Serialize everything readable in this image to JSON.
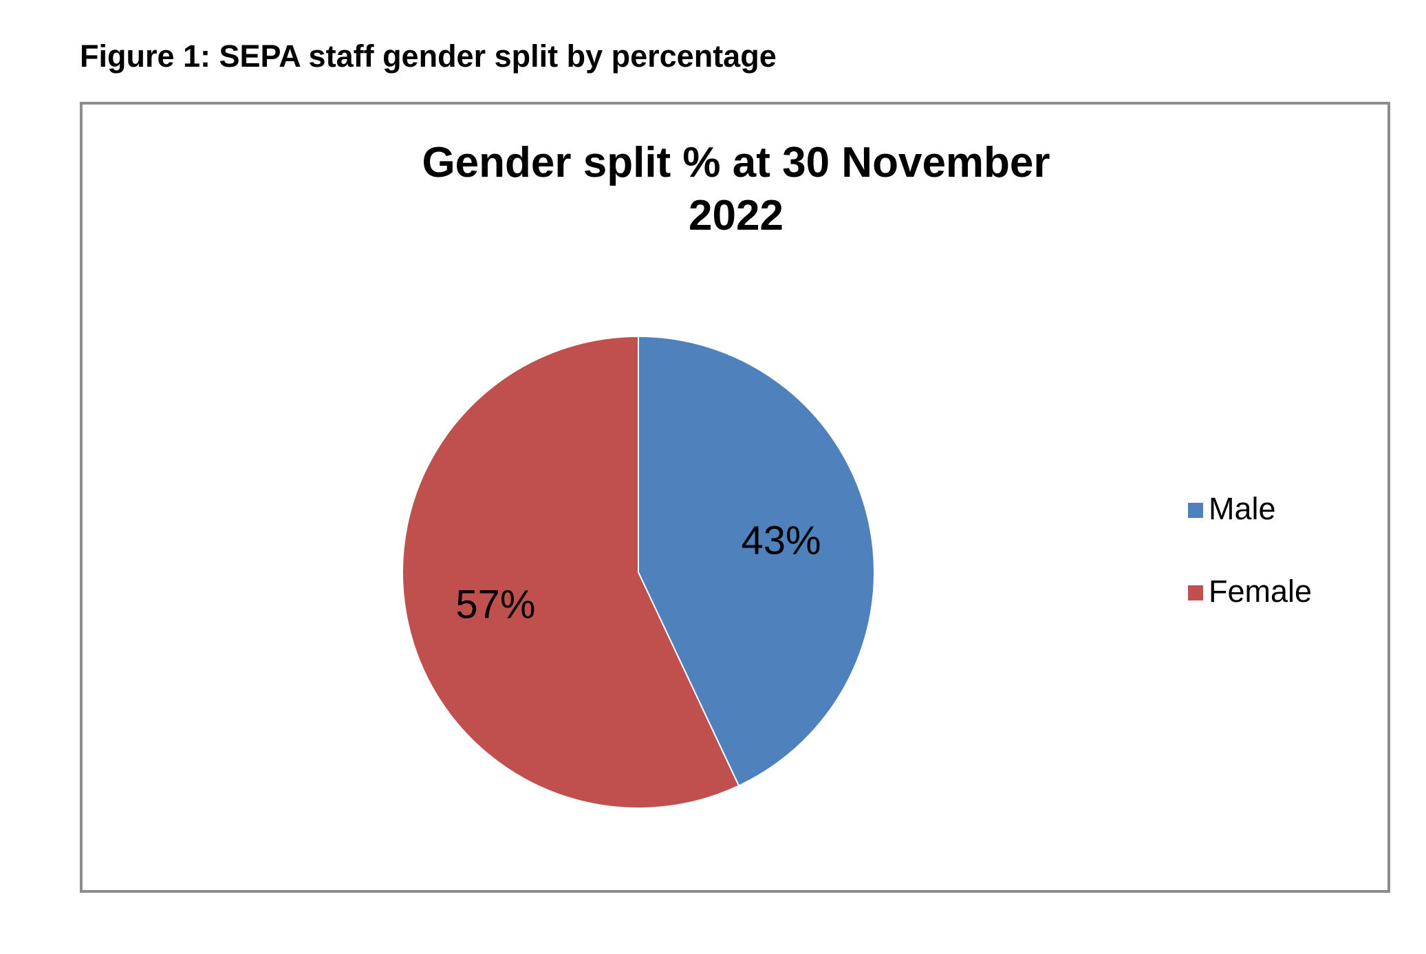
{
  "figure_title": "Figure 1: SEPA staff gender split by percentage",
  "chart_data": {
    "type": "pie",
    "title": [
      "Gender split %  at 30 November",
      "2022"
    ],
    "slices": [
      {
        "label": "Male",
        "value": 43,
        "display": "43%",
        "color": "#4F81BD"
      },
      {
        "label": "Female",
        "value": 57,
        "display": "57%",
        "color": "#C0504D"
      }
    ],
    "legend_position": "right"
  }
}
